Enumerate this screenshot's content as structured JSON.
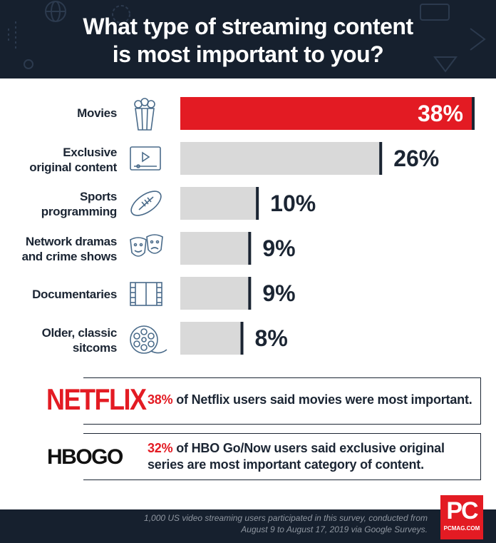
{
  "title_line1": "What type of streaming content",
  "title_line2": "is most important to you?",
  "chart_data": {
    "type": "bar",
    "orientation": "horizontal",
    "title": "What type of streaming content is most important to you?",
    "categories": [
      "Movies",
      "Exclusive original content",
      "Sports programming",
      "Network dramas and crime shows",
      "Documentaries",
      "Older, classic sitcoms"
    ],
    "values": [
      38,
      26,
      10,
      9,
      9,
      8
    ],
    "value_labels": [
      "38%",
      "26%",
      "10%",
      "9%",
      "9%",
      "8%"
    ],
    "unit": "%",
    "xlim": [
      0,
      38
    ],
    "grid": false,
    "highlight_color": "#e31b23",
    "bar_color": "#d9d9d9",
    "marker_color": "#1b2533"
  },
  "labels": [
    {
      "line1": "Movies",
      "line2": ""
    },
    {
      "line1": "Exclusive",
      "line2": "original content"
    },
    {
      "line1": "Sports",
      "line2": "programming"
    },
    {
      "line1": "Network dramas",
      "line2": "and crime shows"
    },
    {
      "line1": "Documentaries",
      "line2": ""
    },
    {
      "line1": "Older, classic",
      "line2": "sitcoms"
    }
  ],
  "icons": [
    "popcorn-icon",
    "video-player-icon",
    "football-icon",
    "theater-masks-icon",
    "film-strip-icon",
    "film-reel-icon"
  ],
  "callouts": [
    {
      "brand": "NETFLIX",
      "pct": "38%",
      "line1": " of Netflix users said movies were most important.",
      "line2": ""
    },
    {
      "brand": "HBOGO",
      "pct": "32%",
      "line1": " of HBO Go/Now users said exclusive original",
      "line2": "series are most important category of content."
    }
  ],
  "footer": {
    "line1": "1,000 US video streaming users participated in this survey, conducted from",
    "line2": "August 9 to August 17, 2019 via Google Surveys."
  },
  "logo": {
    "big": "PC",
    "small": "PCMAG.COM"
  },
  "colors": {
    "accent": "#e31b23",
    "navy": "#16202e",
    "bar": "#d9d9d9",
    "text": "#1b2533"
  }
}
